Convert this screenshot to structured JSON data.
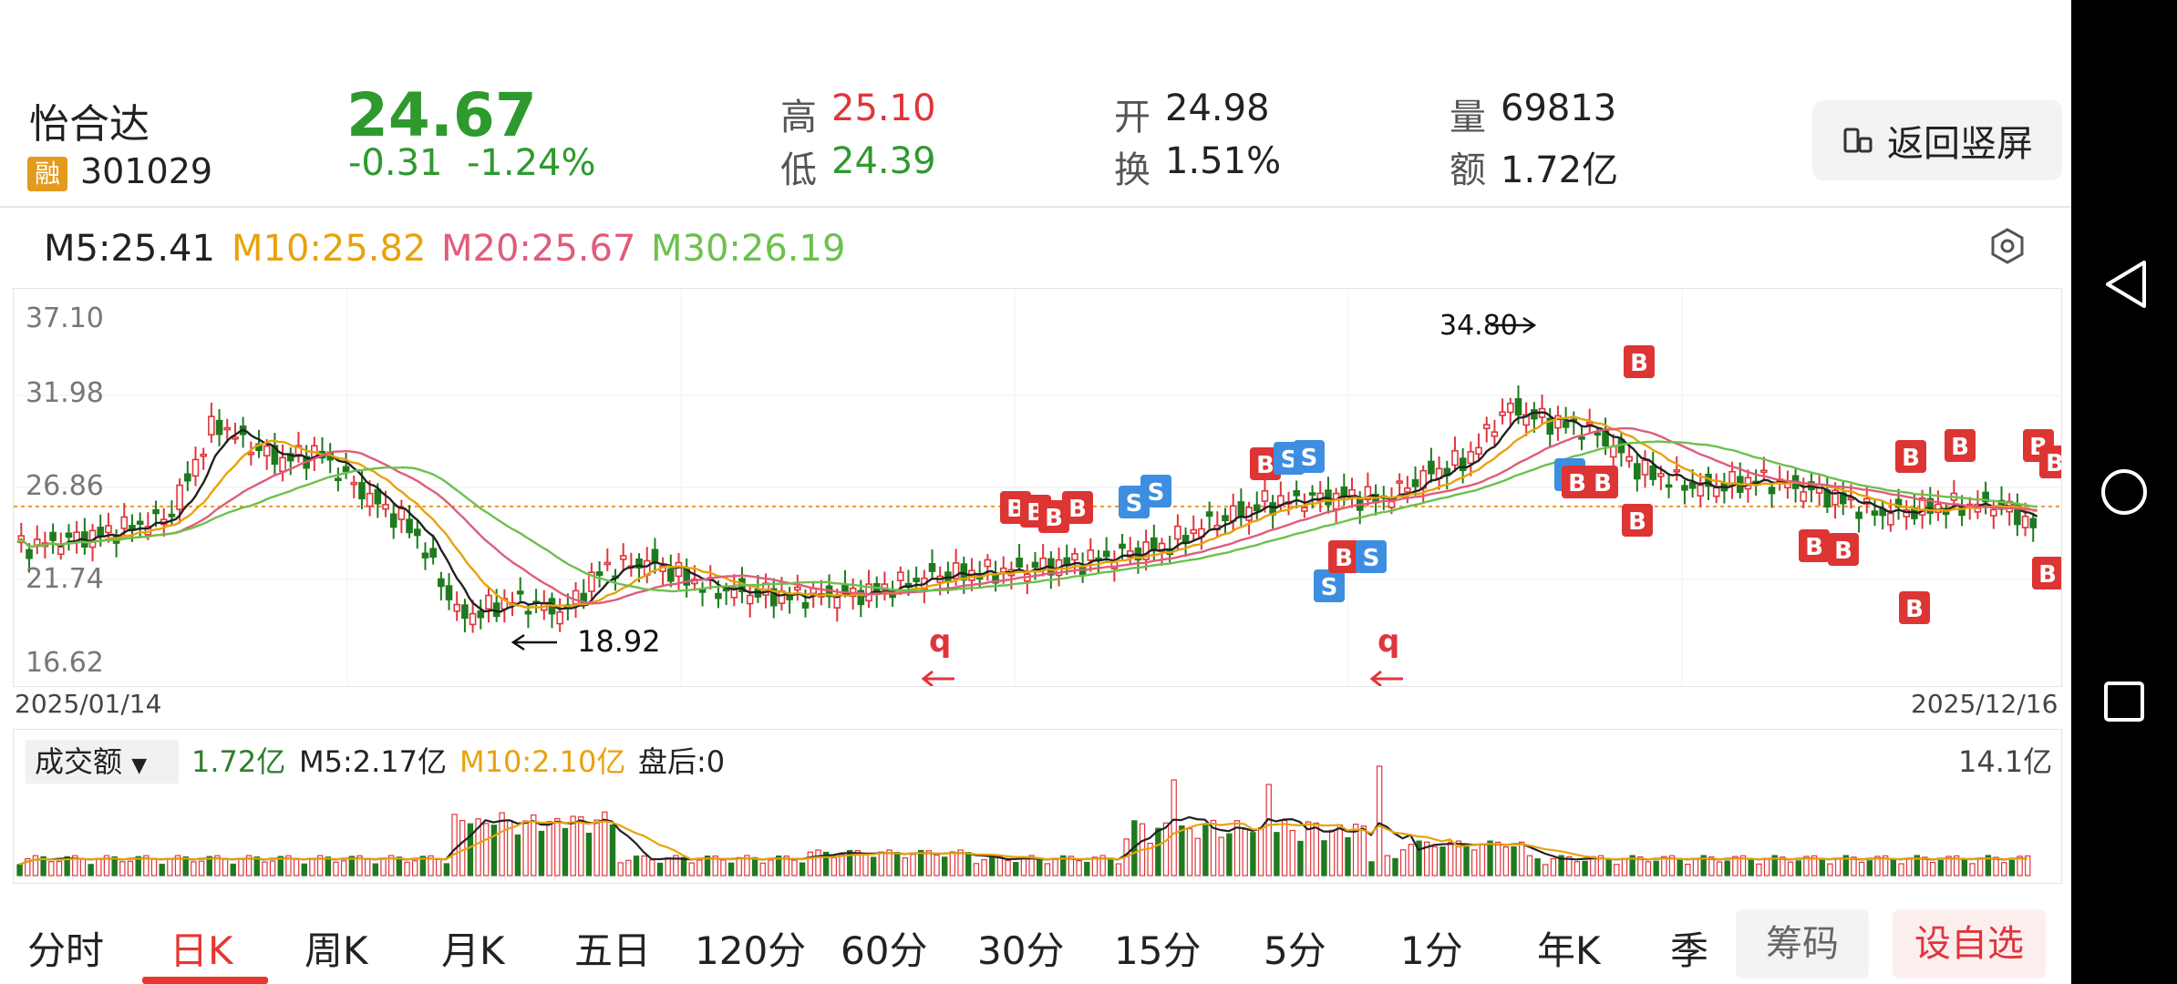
{
  "header": {
    "name": "怡合达",
    "badge": "融",
    "code": "301029",
    "price": "24.67",
    "change": "-0.31",
    "change_pct": "-1.24%",
    "quotes": [
      {
        "label": "高",
        "value": "25.10",
        "color": "#e0353b"
      },
      {
        "label": "低",
        "value": "24.39",
        "color": "#2e9a2e"
      },
      {
        "label": "开",
        "value": "24.98",
        "color": "#222222"
      },
      {
        "label": "换",
        "value": "1.51%",
        "color": "#222222"
      },
      {
        "label": "量",
        "value": "69813",
        "color": "#222222"
      },
      {
        "label": "额",
        "value": "1.72亿",
        "color": "#222222"
      }
    ],
    "portrait_label": "返回竖屏"
  },
  "ma": {
    "m5": "M5:25.41",
    "m10": "M10:25.82",
    "m20": "M20:25.67",
    "m30": "M30:26.19",
    "colors": {
      "m5": "#222222",
      "m10": "#e8a20c",
      "m20": "#e05c7a",
      "m30": "#6cc14d"
    }
  },
  "chart": {
    "y_labels": [
      "37.10",
      "31.98",
      "26.86",
      "21.74",
      "16.62"
    ],
    "start_date": "2025/01/14",
    "end_date": "2025/12/16",
    "high_label": "34.80",
    "low_label": "18.92",
    "q_marker": "q",
    "b_marker": "B",
    "s_marker": "S",
    "up_color": "#e0353b",
    "down_color": "#1f7a1f"
  },
  "volume": {
    "selector": "成交额",
    "value": "1.72亿",
    "m5": "M5:2.17亿",
    "m10": "M10:2.10亿",
    "after_hours": "盘后:0",
    "max": "14.1亿"
  },
  "tabs": [
    "分时",
    "日K",
    "周K",
    "月K",
    "五日",
    "120分",
    "60分",
    "30分",
    "15分",
    "5分",
    "1分",
    "年K",
    "季"
  ],
  "active_tab": "日K",
  "buttons": {
    "chouma": "筹码",
    "zixuan": "设自选"
  },
  "icons": {
    "settings": "hexagon-settings-icon",
    "back": "back-triangle-icon",
    "home": "home-circle-icon",
    "recent": "recent-square-icon"
  }
}
